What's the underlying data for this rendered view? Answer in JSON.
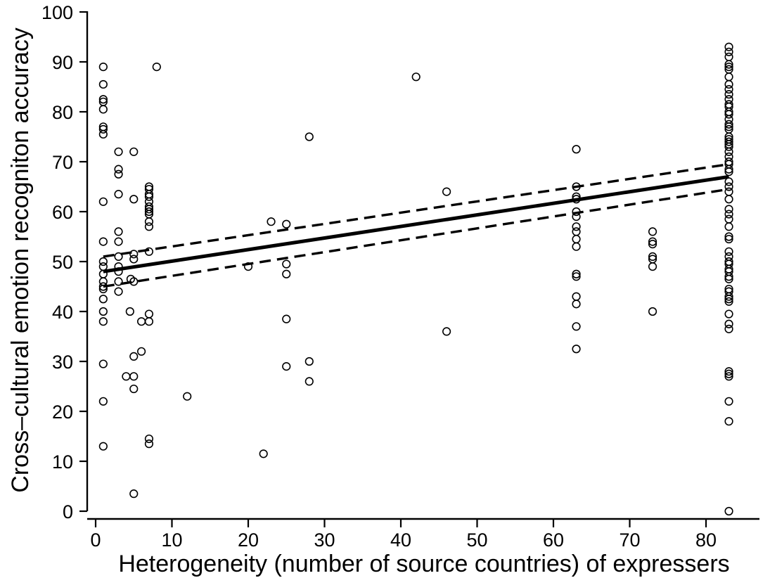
{
  "chart_data": {
    "type": "scatter",
    "xlabel": "Heterogeneity (number of source countries) of expressers",
    "ylabel": "Cross–cultural emotion recogniton accuracy",
    "xlim": [
      0,
      86
    ],
    "ylim": [
      0,
      100
    ],
    "x_ticks": [
      0,
      10,
      20,
      30,
      40,
      50,
      60,
      70,
      80
    ],
    "y_ticks": [
      0,
      10,
      20,
      30,
      40,
      50,
      60,
      70,
      80,
      90,
      100
    ],
    "grid": false,
    "series": [
      {
        "kind": "points",
        "marker": "open-circle",
        "points": [
          [
            1,
            89
          ],
          [
            1,
            85.5
          ],
          [
            1,
            82.5
          ],
          [
            1,
            82
          ],
          [
            1,
            80.5
          ],
          [
            1,
            77
          ],
          [
            1,
            76.5
          ],
          [
            1,
            75.5
          ],
          [
            1,
            62
          ],
          [
            1,
            54
          ],
          [
            1,
            50
          ],
          [
            1,
            49
          ],
          [
            1,
            47.5
          ],
          [
            1,
            46
          ],
          [
            1,
            45
          ],
          [
            1,
            44.5
          ],
          [
            1,
            42.5
          ],
          [
            1,
            40
          ],
          [
            1,
            38
          ],
          [
            1,
            29.5
          ],
          [
            1,
            22
          ],
          [
            1,
            13
          ],
          [
            3,
            72
          ],
          [
            3,
            68.5
          ],
          [
            3,
            67.5
          ],
          [
            3,
            63.5
          ],
          [
            3,
            56
          ],
          [
            3,
            54
          ],
          [
            3,
            51
          ],
          [
            3,
            49
          ],
          [
            3,
            48
          ],
          [
            3,
            46
          ],
          [
            3,
            44
          ],
          [
            4,
            27
          ],
          [
            4.5,
            40
          ],
          [
            4.6,
            46.5
          ],
          [
            5,
            72
          ],
          [
            5,
            62.5
          ],
          [
            5,
            51.5
          ],
          [
            5,
            50.5
          ],
          [
            5,
            46
          ],
          [
            5,
            31
          ],
          [
            5,
            27
          ],
          [
            5,
            24.5
          ],
          [
            5,
            3.5
          ],
          [
            6,
            38
          ],
          [
            6,
            32
          ],
          [
            7,
            65
          ],
          [
            7,
            64.5
          ],
          [
            7,
            63.5
          ],
          [
            7,
            63
          ],
          [
            7,
            62
          ],
          [
            7,
            61
          ],
          [
            7,
            60.5
          ],
          [
            7,
            60
          ],
          [
            7,
            59.5
          ],
          [
            7,
            58
          ],
          [
            7,
            57
          ],
          [
            7,
            52
          ],
          [
            7,
            39.5
          ],
          [
            7,
            38
          ],
          [
            7,
            14.5
          ],
          [
            7,
            13.5
          ],
          [
            8,
            89
          ],
          [
            12,
            23
          ],
          [
            20,
            49
          ],
          [
            22,
            11.5
          ],
          [
            23,
            58
          ],
          [
            25,
            57.5
          ],
          [
            25,
            49.5
          ],
          [
            25,
            47.5
          ],
          [
            25,
            38.5
          ],
          [
            25,
            29
          ],
          [
            28,
            75
          ],
          [
            28,
            30
          ],
          [
            28,
            26
          ],
          [
            42,
            87
          ],
          [
            46,
            64
          ],
          [
            46,
            36
          ],
          [
            63,
            72.5
          ],
          [
            63,
            65
          ],
          [
            63,
            63
          ],
          [
            63,
            62.5
          ],
          [
            63,
            60
          ],
          [
            63,
            59
          ],
          [
            63,
            57
          ],
          [
            63,
            56
          ],
          [
            63,
            54.5
          ],
          [
            63,
            53
          ],
          [
            63,
            47.5
          ],
          [
            63,
            47
          ],
          [
            63,
            43
          ],
          [
            63,
            41.5
          ],
          [
            63,
            37
          ],
          [
            63,
            32.5
          ],
          [
            73,
            56
          ],
          [
            73,
            54
          ],
          [
            73,
            53.5
          ],
          [
            73,
            51
          ],
          [
            73,
            50.5
          ],
          [
            73,
            49
          ],
          [
            73,
            40
          ],
          [
            83,
            93
          ],
          [
            83,
            92
          ],
          [
            83,
            91
          ],
          [
            83,
            89.5
          ],
          [
            83,
            89
          ],
          [
            83,
            88.5
          ],
          [
            83,
            87
          ],
          [
            83,
            85.5
          ],
          [
            83,
            84.5
          ],
          [
            83,
            83.5
          ],
          [
            83,
            82.5
          ],
          [
            83,
            81.5
          ],
          [
            83,
            81
          ],
          [
            83,
            80
          ],
          [
            83,
            79.5
          ],
          [
            83,
            78.5
          ],
          [
            83,
            77.5
          ],
          [
            83,
            77
          ],
          [
            83,
            76.5
          ],
          [
            83,
            75
          ],
          [
            83,
            74.5
          ],
          [
            83,
            74
          ],
          [
            83,
            73.5
          ],
          [
            83,
            73
          ],
          [
            83,
            72
          ],
          [
            83,
            71
          ],
          [
            83,
            70
          ],
          [
            83,
            69.5
          ],
          [
            83,
            68.5
          ],
          [
            83,
            68
          ],
          [
            83,
            66
          ],
          [
            83,
            65
          ],
          [
            83,
            64
          ],
          [
            83,
            62.5
          ],
          [
            83,
            60.5
          ],
          [
            83,
            59.5
          ],
          [
            83,
            58.5
          ],
          [
            83,
            57
          ],
          [
            83,
            55
          ],
          [
            83,
            54.5
          ],
          [
            83,
            52
          ],
          [
            83,
            51
          ],
          [
            83,
            50
          ],
          [
            83,
            49.5
          ],
          [
            83,
            48.5
          ],
          [
            83,
            48
          ],
          [
            83,
            47
          ],
          [
            83,
            46.5
          ],
          [
            83,
            44.5
          ],
          [
            83,
            44
          ],
          [
            83,
            43
          ],
          [
            83,
            42.5
          ],
          [
            83,
            42
          ],
          [
            83,
            39.5
          ],
          [
            83,
            37.5
          ],
          [
            83,
            36.5
          ],
          [
            83,
            28
          ],
          [
            83,
            27.5
          ],
          [
            83,
            27
          ],
          [
            83,
            22
          ],
          [
            83,
            18
          ],
          [
            83,
            0
          ]
        ]
      },
      {
        "kind": "line",
        "style": "solid",
        "points": [
          [
            1,
            48
          ],
          [
            83,
            67
          ]
        ]
      },
      {
        "kind": "line",
        "style": "dashed",
        "points": [
          [
            1,
            51
          ],
          [
            83,
            69.5
          ]
        ]
      },
      {
        "kind": "line",
        "style": "dashed",
        "points": [
          [
            1,
            45
          ],
          [
            83,
            64.5
          ]
        ]
      }
    ]
  }
}
